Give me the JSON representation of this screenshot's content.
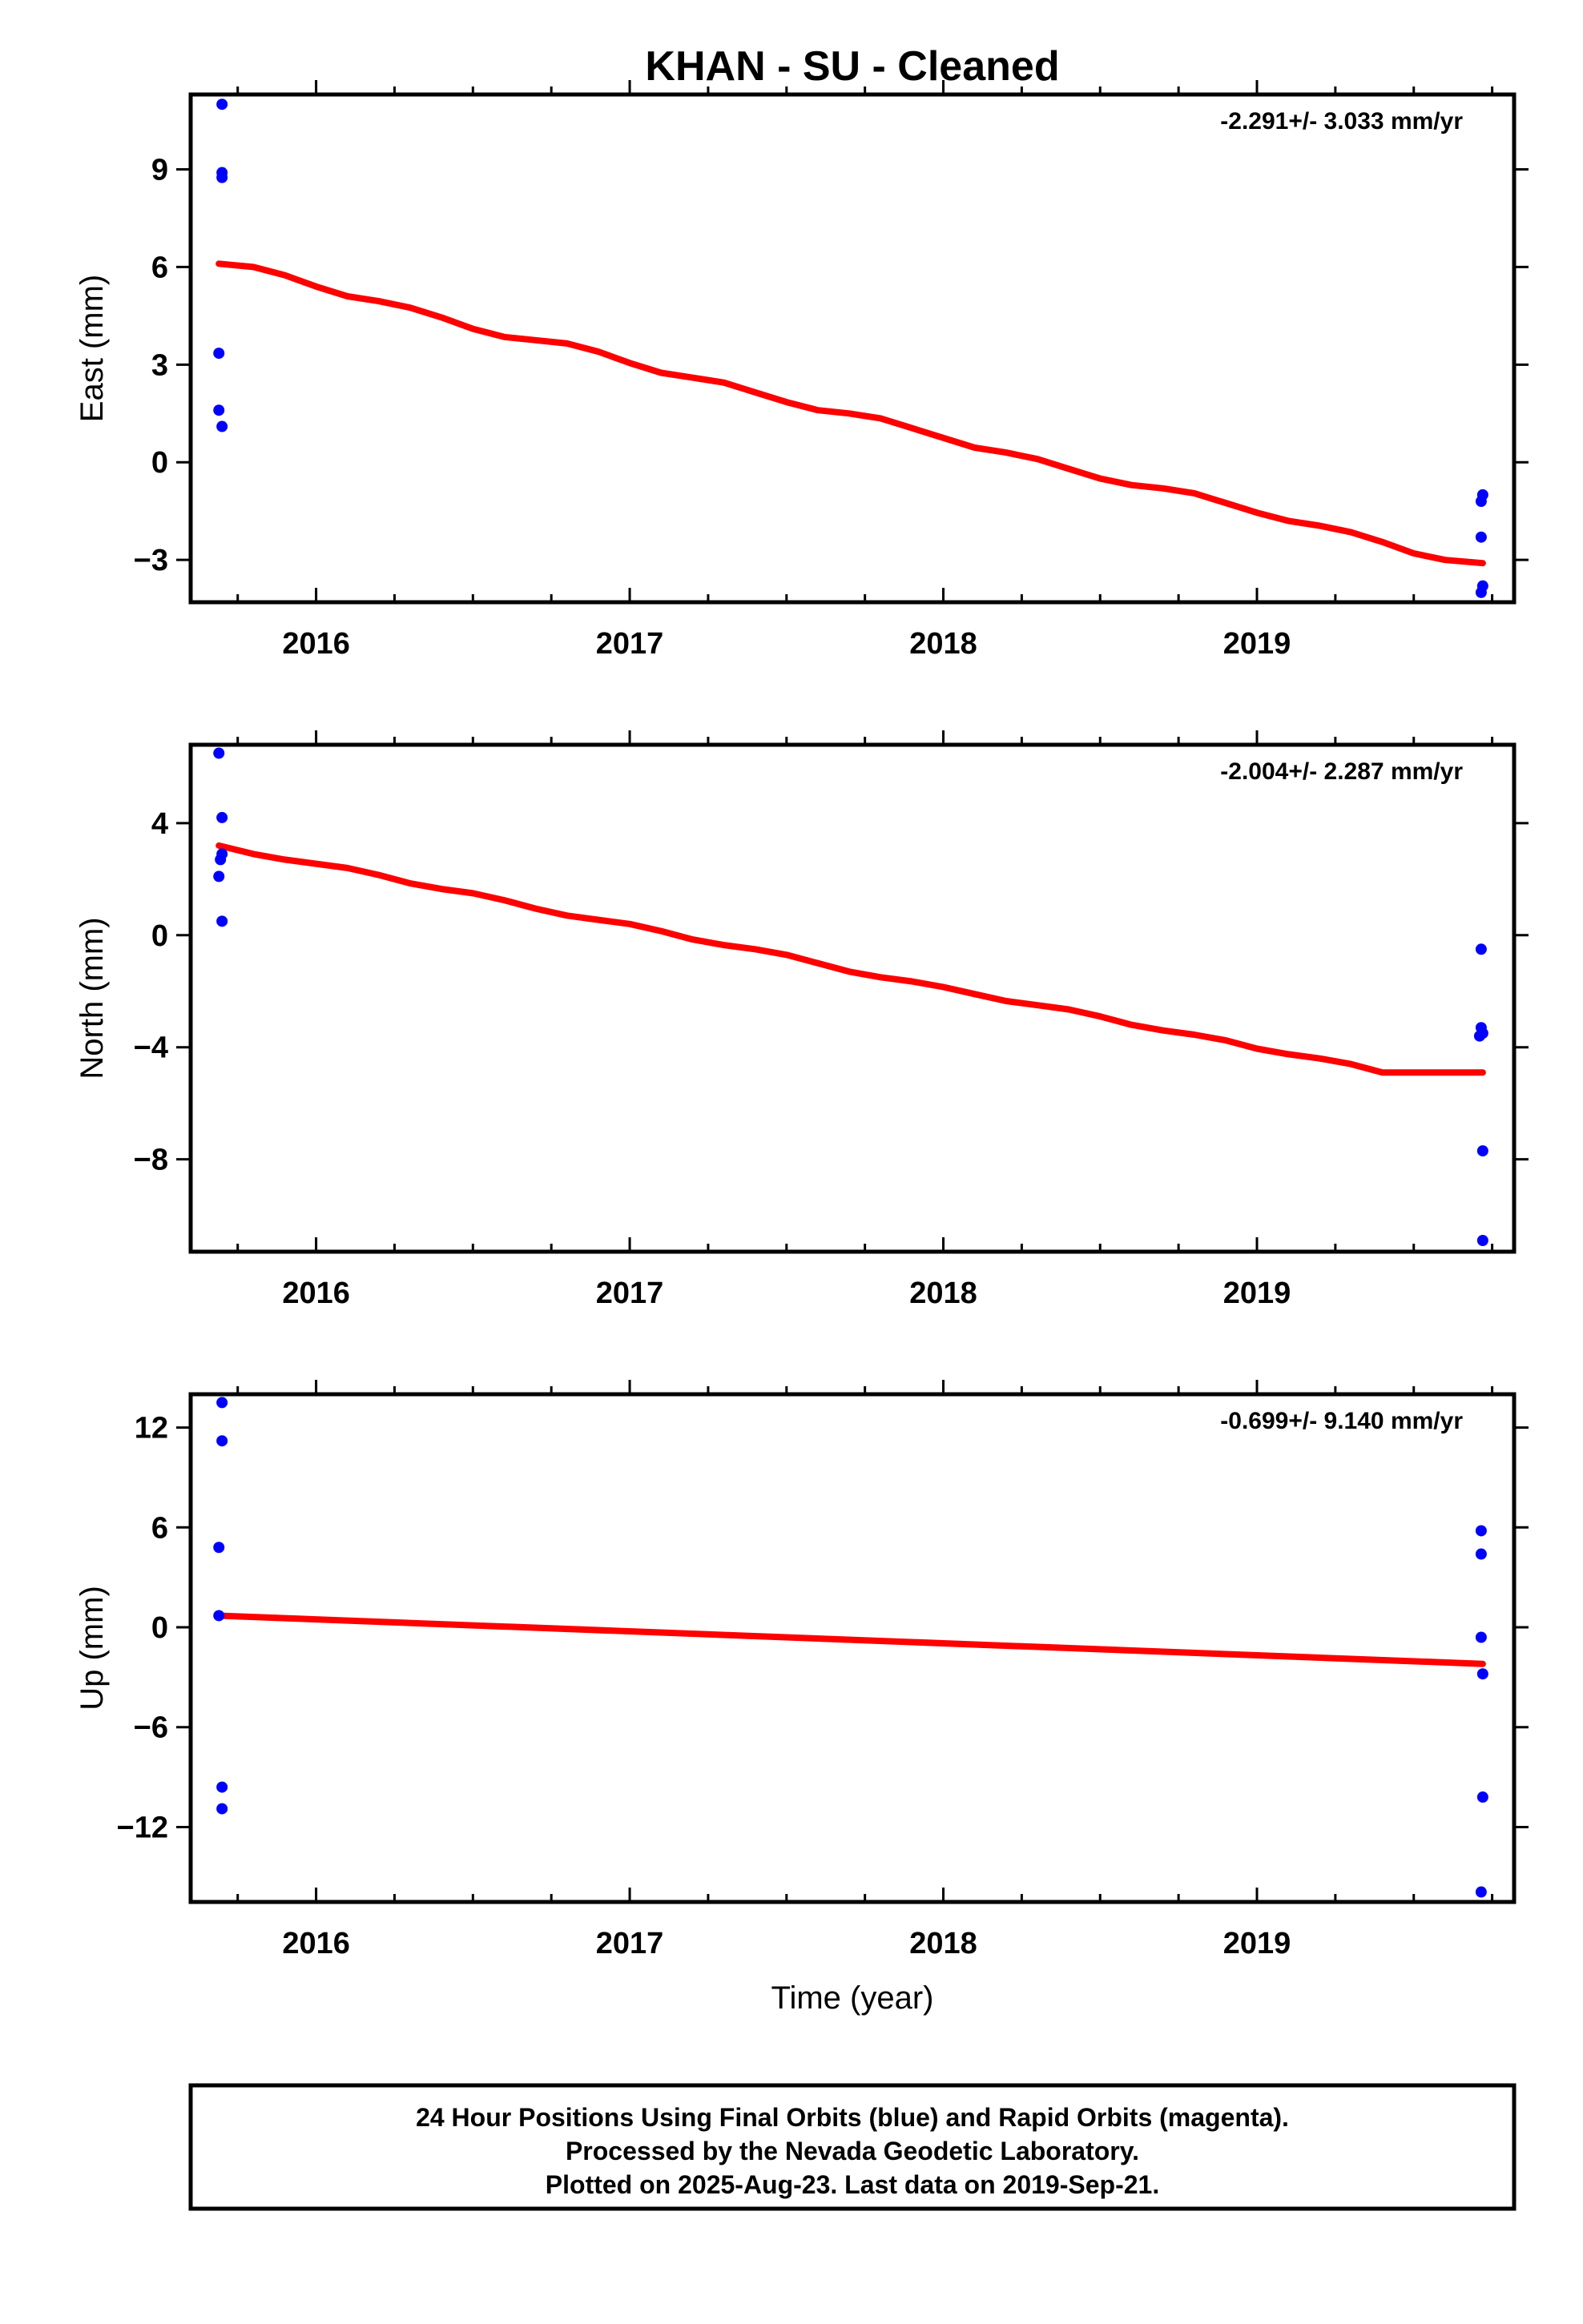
{
  "chart_data": {
    "title": "KHAN  - SU - Cleaned",
    "xlabel": "Time (year)",
    "x_ticks": [
      2016,
      2017,
      2018,
      2019
    ],
    "x_tick_labels": [
      "2016",
      "2017",
      "2018",
      "2019"
    ],
    "xlim": [
      2015.6,
      2019.82
    ],
    "colors": {
      "data": "#0000ff",
      "model": "#ff0000"
    },
    "panels": [
      {
        "type": "scatter",
        "component": "East",
        "ylabel": "East (mm)",
        "rate": "-2.291+/- 3.033 mm/yr",
        "ylim": [
          -4.3,
          11.3
        ],
        "y_ticks": [
          9,
          6,
          3,
          0,
          -3
        ],
        "y_tick_labels": [
          "9",
          "6",
          "3",
          "0",
          "−3"
        ],
        "points": [
          [
            2015.7,
            11.0
          ],
          [
            2015.7,
            8.9
          ],
          [
            2015.7,
            8.75
          ],
          [
            2015.69,
            3.35
          ],
          [
            2015.69,
            1.6
          ],
          [
            2015.7,
            1.1
          ],
          [
            2019.72,
            -1.0
          ],
          [
            2019.715,
            -1.2
          ],
          [
            2019.715,
            -2.3
          ],
          [
            2019.72,
            -3.8
          ],
          [
            2019.715,
            -4.0
          ]
        ],
        "model": [
          [
            2015.69,
            6.1
          ],
          [
            2015.8,
            6.0
          ],
          [
            2015.9,
            5.75
          ],
          [
            2016.0,
            5.4
          ],
          [
            2016.1,
            5.1
          ],
          [
            2016.2,
            4.95
          ],
          [
            2016.3,
            4.75
          ],
          [
            2016.4,
            4.45
          ],
          [
            2016.5,
            4.1
          ],
          [
            2016.6,
            3.85
          ],
          [
            2016.7,
            3.75
          ],
          [
            2016.8,
            3.65
          ],
          [
            2016.9,
            3.4
          ],
          [
            2017.0,
            3.05
          ],
          [
            2017.1,
            2.75
          ],
          [
            2017.2,
            2.6
          ],
          [
            2017.3,
            2.45
          ],
          [
            2017.4,
            2.15
          ],
          [
            2017.5,
            1.85
          ],
          [
            2017.6,
            1.6
          ],
          [
            2017.7,
            1.5
          ],
          [
            2017.8,
            1.35
          ],
          [
            2017.9,
            1.05
          ],
          [
            2018.0,
            0.75
          ],
          [
            2018.1,
            0.45
          ],
          [
            2018.2,
            0.3
          ],
          [
            2018.3,
            0.1
          ],
          [
            2018.4,
            -0.2
          ],
          [
            2018.5,
            -0.5
          ],
          [
            2018.6,
            -0.7
          ],
          [
            2018.7,
            -0.8
          ],
          [
            2018.8,
            -0.95
          ],
          [
            2018.9,
            -1.25
          ],
          [
            2019.0,
            -1.55
          ],
          [
            2019.1,
            -1.8
          ],
          [
            2019.2,
            -1.95
          ],
          [
            2019.3,
            -2.15
          ],
          [
            2019.4,
            -2.45
          ],
          [
            2019.5,
            -2.8
          ],
          [
            2019.6,
            -3.0
          ],
          [
            2019.72,
            -3.1
          ]
        ]
      },
      {
        "type": "scatter",
        "component": "North",
        "ylabel": "North (mm)",
        "rate": "-2.004+/- 2.287 mm/yr",
        "ylim": [
          -11.3,
          6.8
        ],
        "y_ticks": [
          4,
          0,
          -4,
          -8
        ],
        "y_tick_labels": [
          "4",
          "0",
          "−4",
          "−8"
        ],
        "points": [
          [
            2015.69,
            6.5
          ],
          [
            2015.7,
            4.2
          ],
          [
            2015.7,
            2.9
          ],
          [
            2015.695,
            2.7
          ],
          [
            2015.69,
            2.1
          ],
          [
            2015.7,
            0.5
          ],
          [
            2019.715,
            -0.5
          ],
          [
            2019.715,
            -3.3
          ],
          [
            2019.72,
            -3.5
          ],
          [
            2019.71,
            -3.6
          ],
          [
            2019.72,
            -7.7
          ],
          [
            2019.72,
            -10.9
          ]
        ],
        "model": [
          [
            2015.69,
            3.2
          ],
          [
            2015.8,
            2.9
          ],
          [
            2015.9,
            2.7
          ],
          [
            2016.0,
            2.55
          ],
          [
            2016.1,
            2.4
          ],
          [
            2016.2,
            2.15
          ],
          [
            2016.3,
            1.85
          ],
          [
            2016.4,
            1.65
          ],
          [
            2016.5,
            1.5
          ],
          [
            2016.6,
            1.25
          ],
          [
            2016.7,
            0.95
          ],
          [
            2016.8,
            0.7
          ],
          [
            2016.9,
            0.55
          ],
          [
            2017.0,
            0.4
          ],
          [
            2017.1,
            0.15
          ],
          [
            2017.2,
            -0.15
          ],
          [
            2017.3,
            -0.35
          ],
          [
            2017.4,
            -0.5
          ],
          [
            2017.5,
            -0.7
          ],
          [
            2017.6,
            -1.0
          ],
          [
            2017.7,
            -1.3
          ],
          [
            2017.8,
            -1.5
          ],
          [
            2017.9,
            -1.65
          ],
          [
            2018.0,
            -1.85
          ],
          [
            2018.1,
            -2.1
          ],
          [
            2018.2,
            -2.35
          ],
          [
            2018.3,
            -2.5
          ],
          [
            2018.4,
            -2.65
          ],
          [
            2018.5,
            -2.9
          ],
          [
            2018.6,
            -3.2
          ],
          [
            2018.7,
            -3.4
          ],
          [
            2018.8,
            -3.55
          ],
          [
            2018.9,
            -3.75
          ],
          [
            2019.0,
            -4.05
          ],
          [
            2019.1,
            -4.25
          ],
          [
            2019.2,
            -4.4
          ],
          [
            2019.3,
            -4.6
          ],
          [
            2019.4,
            -4.9
          ],
          [
            2019.72,
            -4.9
          ]
        ]
      },
      {
        "type": "scatter",
        "component": "Up",
        "ylabel": "Up (mm)",
        "rate": "-0.699+/- 9.140 mm/yr",
        "ylim": [
          -16.5,
          14.0
        ],
        "y_ticks": [
          12,
          6,
          0,
          -6,
          -12
        ],
        "y_tick_labels": [
          "12",
          "6",
          "0",
          "−6",
          "−12"
        ],
        "points": [
          [
            2015.7,
            13.5
          ],
          [
            2015.7,
            11.2
          ],
          [
            2015.69,
            4.8
          ],
          [
            2015.69,
            0.7
          ],
          [
            2015.7,
            -9.6
          ],
          [
            2015.7,
            -10.9
          ],
          [
            2019.715,
            5.8
          ],
          [
            2019.715,
            4.4
          ],
          [
            2019.715,
            -0.6
          ],
          [
            2019.72,
            -2.8
          ],
          [
            2019.72,
            -10.2
          ],
          [
            2019.715,
            -15.9
          ]
        ],
        "model": [
          [
            2015.69,
            0.7
          ],
          [
            2019.72,
            -2.2
          ]
        ]
      }
    ],
    "legend_box": {
      "lines": [
        "24 Hour Positions Using Final Orbits (blue) and Rapid Orbits (magenta).",
        "Processed by the Nevada Geodetic Laboratory.",
        "Plotted on 2025-Aug-23. Last data on 2019-Sep-21."
      ]
    }
  }
}
